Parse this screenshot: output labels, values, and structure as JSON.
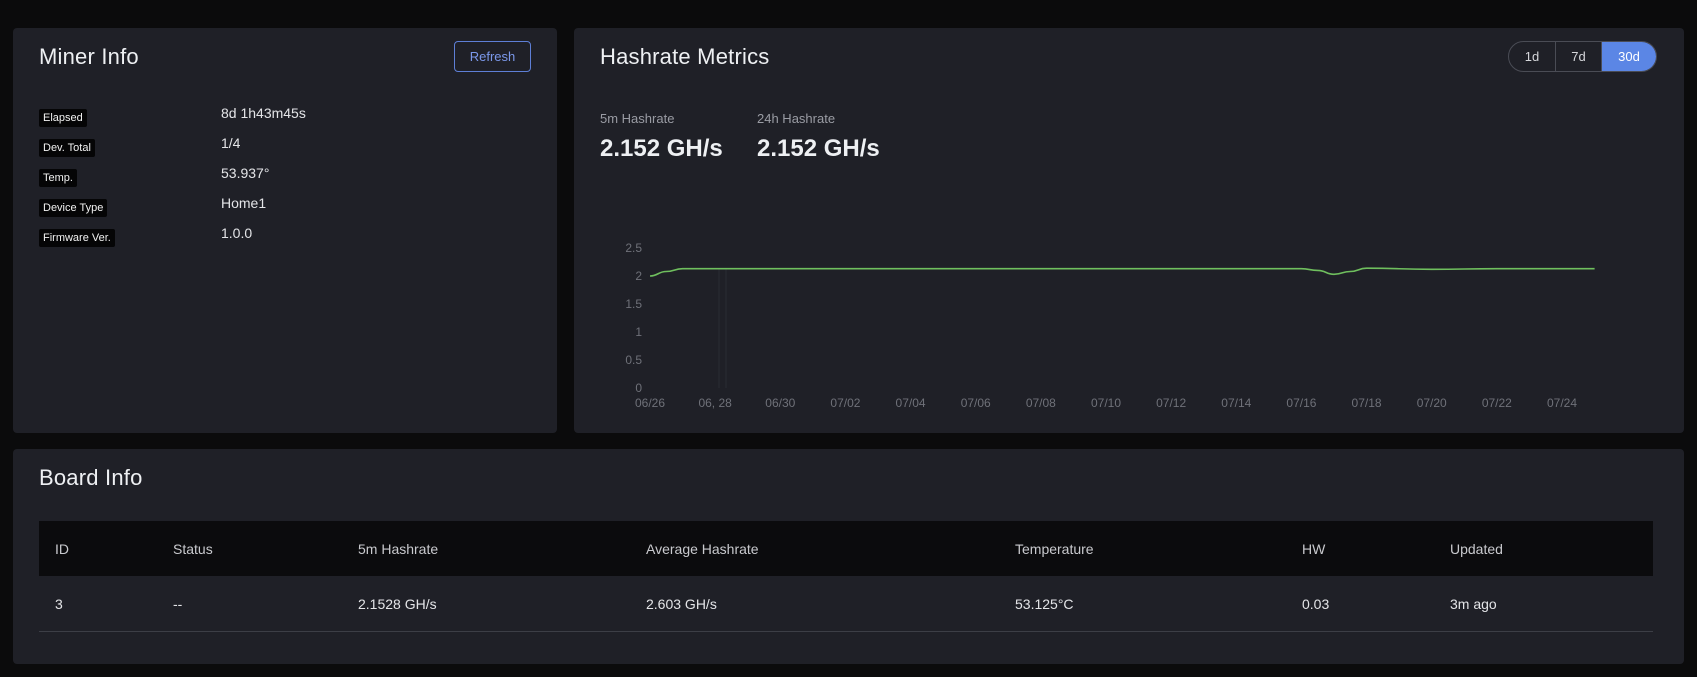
{
  "miner_info": {
    "title": "Miner Info",
    "refresh_label": "Refresh",
    "rows": [
      {
        "label": "Elapsed",
        "value": "8d 1h43m45s"
      },
      {
        "label": "Dev. Total",
        "value": "1/4"
      },
      {
        "label": "Temp.",
        "value": "53.937°"
      },
      {
        "label": "Device Type",
        "value": "Home1"
      },
      {
        "label": "Firmware Ver.",
        "value": "1.0.0"
      }
    ]
  },
  "hashrate_metrics": {
    "title": "Hashrate Metrics",
    "ranges": [
      "1d",
      "7d",
      "30d"
    ],
    "active_range": "30d",
    "stats": [
      {
        "label": "5m Hashrate",
        "value": "2.152 GH/s"
      },
      {
        "label": "24h Hashrate",
        "value": "2.152 GH/s"
      }
    ]
  },
  "chart_data": {
    "type": "line",
    "title": "",
    "xlabel": "",
    "ylabel": "",
    "x_ticks": [
      "06/26",
      "06, 28",
      "06/30",
      "07/02",
      "07/04",
      "07/06",
      "07/08",
      "07/10",
      "07/12",
      "07/14",
      "07/16",
      "07/18",
      "07/20",
      "07/22",
      "07/24"
    ],
    "y_ticks": [
      "0",
      "0.5",
      "1",
      "1.5",
      "2",
      "2.5"
    ],
    "ylim": [
      0,
      2.5
    ],
    "grid": false,
    "line_color": "#6fbf5e",
    "x": [
      "06/26",
      "06/26",
      "06/27",
      "06/28",
      "06/30",
      "07/02",
      "07/04",
      "07/06",
      "07/08",
      "07/10",
      "07/12",
      "07/14",
      "07/16",
      "07/16",
      "07/17",
      "07/17",
      "07/18",
      "07/20",
      "07/22",
      "07/24",
      "07/25"
    ],
    "y": [
      2.0,
      2.08,
      2.13,
      2.13,
      2.13,
      2.13,
      2.13,
      2.13,
      2.13,
      2.13,
      2.13,
      2.13,
      2.13,
      2.1,
      2.03,
      2.08,
      2.14,
      2.12,
      2.13,
      2.13,
      2.13
    ]
  },
  "board_info": {
    "title": "Board Info",
    "columns": [
      "ID",
      "Status",
      "5m Hashrate",
      "Average Hashrate",
      "Temperature",
      "HW",
      "Updated"
    ],
    "rows": [
      [
        "3",
        "--",
        "2.1528 GH/s",
        "2.603 GH/s",
        "53.125°C",
        "0.03",
        "3m ago"
      ]
    ]
  }
}
